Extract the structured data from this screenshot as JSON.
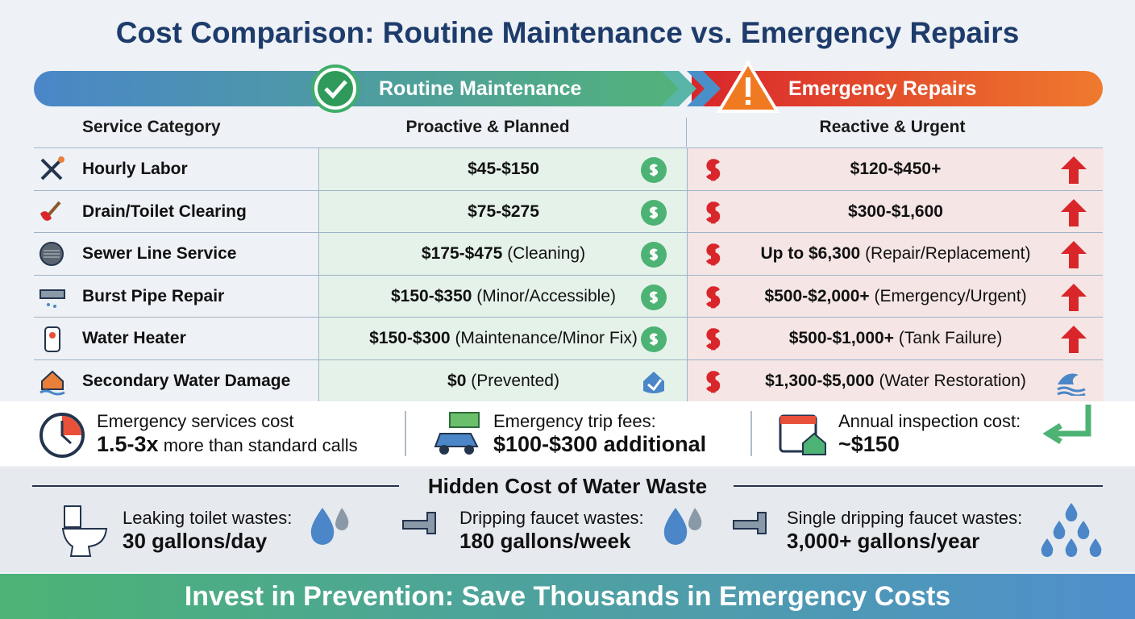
{
  "title": "Cost Comparison: Routine Maintenance vs. Emergency Repairs",
  "banner": {
    "routine": "Routine Maintenance",
    "emergency": "Emergency Repairs"
  },
  "table": {
    "headers": [
      "Service Category",
      "Proactive & Planned",
      "Reactive & Urgent"
    ],
    "rows": [
      {
        "category": "Hourly Labor",
        "routine": {
          "main": "$45-$150"
        },
        "emergency": {
          "main": "$120-$450+"
        }
      },
      {
        "category": "Drain/Toilet Clearing",
        "routine": {
          "main": "$75-$275"
        },
        "emergency": {
          "main": "$300-$1,600"
        }
      },
      {
        "category": "Sewer Line Service",
        "routine": {
          "main": "$175-$475",
          "note": "(Cleaning)"
        },
        "emergency": {
          "main": "Up to $6,300",
          "note": "(Repair/Replacement)"
        }
      },
      {
        "category": "Burst Pipe Repair",
        "routine": {
          "main": "$150-$350",
          "note": "(Minor/Accessible)"
        },
        "emergency": {
          "main": "$500-$2,000+",
          "note": "(Emergency/Urgent)"
        }
      },
      {
        "category": "Water Heater",
        "routine": {
          "main": "$150-$300",
          "note": "(Maintenance/Minor Fix)"
        },
        "emergency": {
          "main": "$500-$1,000+",
          "note": "(Tank Failure)"
        }
      },
      {
        "category": "Secondary Water Damage",
        "routine": {
          "main": "$0",
          "note": "(Prevented)"
        },
        "emergency": {
          "main": "$1,300-$5,000",
          "note": "(Water Restoration)"
        }
      }
    ]
  },
  "facts": [
    {
      "line1": "Emergency services cost",
      "bold": "1.5-3x",
      "rest": "more than standard calls"
    },
    {
      "line1": "Emergency trip fees:",
      "bold": "$100-$300 additional"
    },
    {
      "line1": "Annual inspection cost:",
      "bold": "~$150"
    }
  ],
  "waste": {
    "title": "Hidden Cost of Water Waste",
    "items": [
      {
        "label": "Leaking toilet wastes:",
        "amount": "30 gallons/day"
      },
      {
        "label": "Dripping faucet wastes:",
        "amount": "180 gallons/week"
      },
      {
        "label": "Single dripping faucet wastes:",
        "amount": "3,000+ gallons/year"
      }
    ]
  },
  "footer": "Invest in Prevention: Save Thousands in Emergency Costs"
}
